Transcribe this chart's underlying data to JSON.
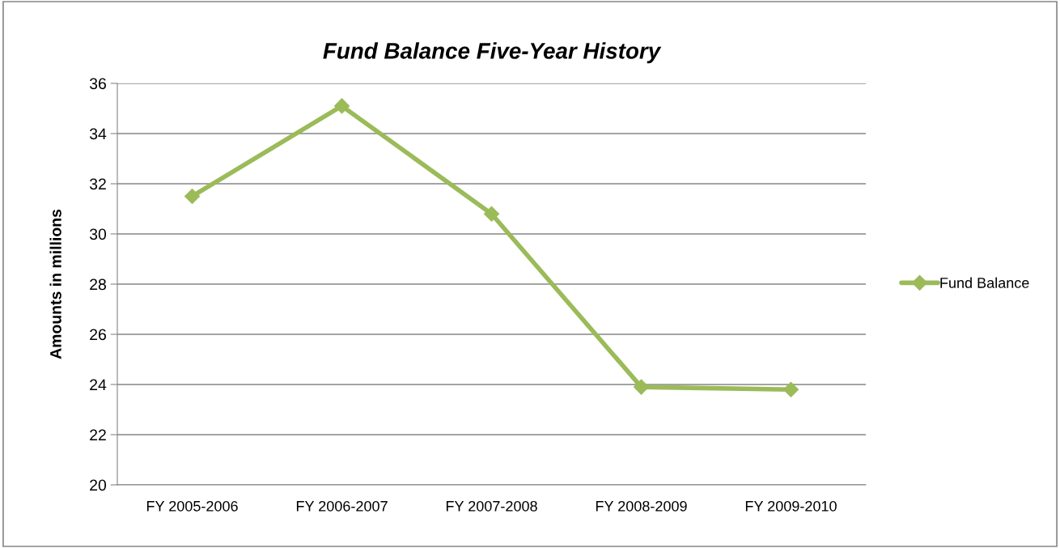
{
  "chart_data": {
    "type": "line",
    "title": "Fund Balance Five-Year History",
    "ylabel": "Amounts in millions",
    "categories": [
      "FY 2005-2006",
      "FY 2006-2007",
      "FY 2007-2008",
      "FY 2008-2009",
      "FY 2009-2010"
    ],
    "series": [
      {
        "name": "Fund Balance",
        "color": "#9bbb59",
        "values": [
          31.5,
          35.1,
          30.8,
          23.9,
          23.8
        ]
      }
    ],
    "ylim": [
      20,
      36
    ],
    "yticks": [
      20,
      22,
      24,
      26,
      28,
      30,
      32,
      34,
      36
    ],
    "grid": "y",
    "legend": "right",
    "marker": "diamond",
    "line_style": "solid"
  }
}
